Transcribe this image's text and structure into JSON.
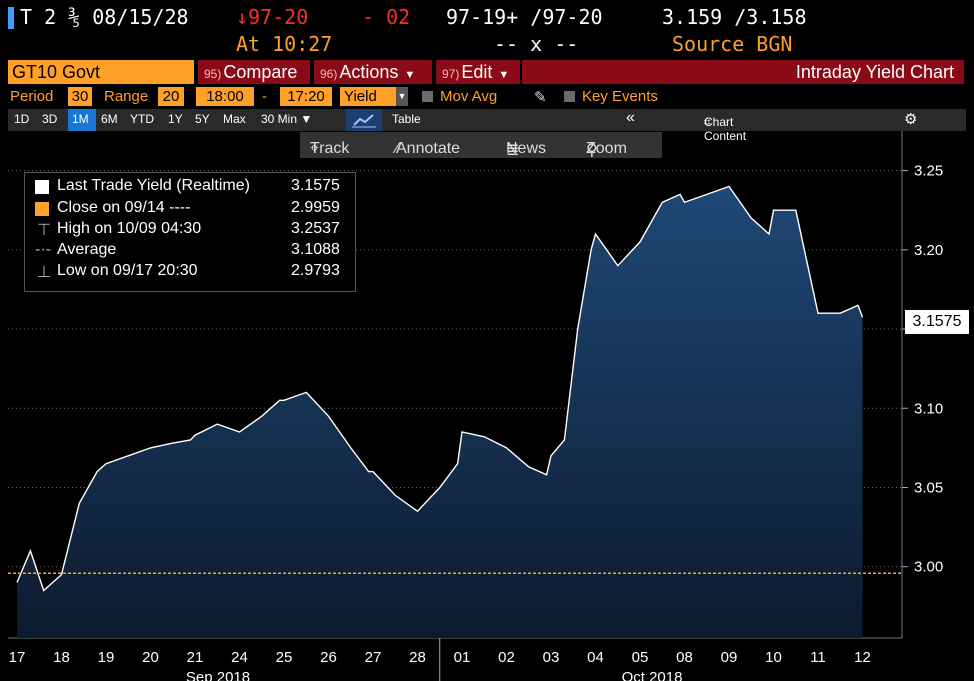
{
  "header": {
    "security": "T 2 ⅗ 08/15/28",
    "change_price": "↓97-20",
    "change": "- 02",
    "bid_ask": "97-19+ /97-20",
    "yields": "3.159 /3.158",
    "time": "At 10:27",
    "size": "-- x --",
    "source": "Source BGN"
  },
  "command_bar": {
    "ticker": "GT10 Govt",
    "compare_num": "95)",
    "compare": "Compare",
    "actions_num": "96)",
    "actions": "Actions",
    "edit_num": "97)",
    "edit": "Edit",
    "title": "Intraday Yield Chart"
  },
  "options": {
    "period_label": "Period",
    "period_value": "30",
    "range_label": "Range",
    "range_value": "20",
    "start_time": "18:00",
    "dash": "-",
    "end_time": "17:20",
    "field": "Yield",
    "mov_avg": "Mov Avg",
    "key_events": "Key Events"
  },
  "range_buttons": [
    "1D",
    "3D",
    "1M",
    "6M",
    "YTD",
    "1Y",
    "5Y",
    "Max",
    "30 Min ▼"
  ],
  "range_active": "1M",
  "range_extra": {
    "table": "Table",
    "collapse": "«",
    "chart_content": "Chart Content"
  },
  "tools": {
    "track": "Track",
    "annotate": "Annotate",
    "news": "News",
    "zoom": "Zoom"
  },
  "legend": {
    "last": {
      "label": "Last Trade Yield (Realtime)",
      "value": "3.1575"
    },
    "close": {
      "label": "Close on 09/14 ----",
      "value": "2.9959"
    },
    "high": {
      "label": "High on 10/09 04:30",
      "value": "3.2537"
    },
    "avg": {
      "label": "Average",
      "value": "3.1088"
    },
    "low": {
      "label": "Low on 09/17 20:30",
      "value": "2.9793"
    }
  },
  "current_label": "3.1575",
  "colors": {
    "accent_orange": "#ffa028",
    "bar_red": "#8b0a17",
    "area_top": "#1f4876",
    "area_bottom": "#0c1a2e",
    "line": "#ffffff",
    "close_line": "#ffa028",
    "active_blue": "#1976d2"
  },
  "chart_data": {
    "type": "area",
    "ylabel": "",
    "ylim": [
      2.955,
      3.275
    ],
    "y_ticks": [
      3.0,
      3.05,
      3.1,
      3.15,
      3.2,
      3.25
    ],
    "y_tick_labels": [
      "3.00",
      "3.05",
      "3.10",
      "3.15",
      "3.20",
      "3.25"
    ],
    "grid": true,
    "reference_line": {
      "name": "Close on 09/14",
      "y": 2.9959
    },
    "day_labels": [
      "17",
      "18",
      "19",
      "20",
      "21",
      "24",
      "25",
      "26",
      "27",
      "28",
      "01",
      "02",
      "03",
      "04",
      "05",
      "08",
      "09",
      "10",
      "11",
      "12"
    ],
    "month_labels": [
      "Sep 2018",
      "Oct 2018"
    ],
    "series": [
      {
        "name": "Last Trade Yield (Realtime)",
        "x": [
          0,
          0.3,
          0.6,
          1,
          1.4,
          1.8,
          2,
          2.5,
          3,
          3.5,
          3.9,
          4,
          4.5,
          5,
          5.5,
          5.9,
          6,
          6.5,
          7,
          7.5,
          7.9,
          8,
          8.5,
          9,
          9.5,
          9.9,
          10,
          10.5,
          11,
          11.5,
          11.9,
          12,
          12.3,
          12.6,
          12.9,
          13,
          13.5,
          14,
          14.5,
          14.9,
          15,
          15.5,
          16,
          16.5,
          16.9,
          17,
          17.5,
          18,
          18.5,
          18.9,
          19
        ],
        "y": [
          2.99,
          3.01,
          2.985,
          2.995,
          3.04,
          3.06,
          3.065,
          3.07,
          3.075,
          3.078,
          3.08,
          3.083,
          3.09,
          3.085,
          3.095,
          3.105,
          3.105,
          3.11,
          3.095,
          3.075,
          3.06,
          3.06,
          3.045,
          3.035,
          3.05,
          3.065,
          3.085,
          3.082,
          3.075,
          3.063,
          3.058,
          3.07,
          3.08,
          3.15,
          3.2,
          3.21,
          3.19,
          3.205,
          3.23,
          3.235,
          3.23,
          3.235,
          3.24,
          3.22,
          3.21,
          3.225,
          3.225,
          3.16,
          3.16,
          3.165,
          3.1575
        ]
      }
    ]
  }
}
